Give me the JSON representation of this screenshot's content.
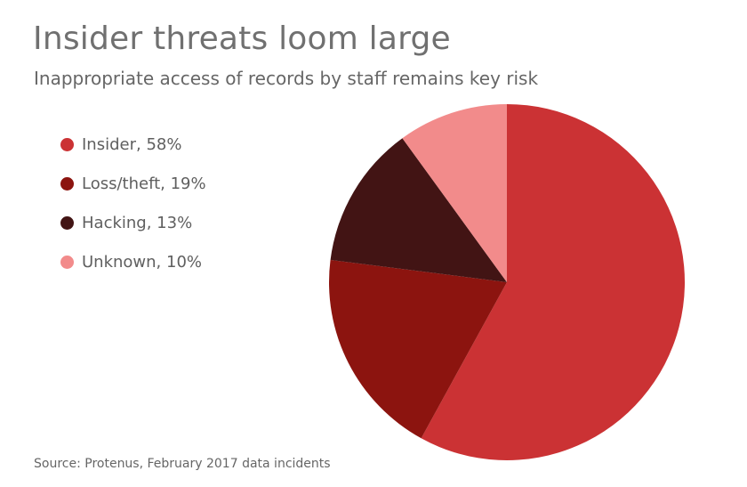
{
  "header": {
    "title": "Insider threats loom large",
    "subtitle": "Inappropriate access of records by staff remains key risk"
  },
  "legend": {
    "items": [
      {
        "label": "Insider, 58%"
      },
      {
        "label": "Loss/theft, 19%"
      },
      {
        "label": "Hacking, 13%"
      },
      {
        "label": "Unknown, 10%"
      }
    ]
  },
  "footer": {
    "source": "Source: Protenus, February 2017 data incidents"
  },
  "chart_data": {
    "type": "pie",
    "title": "Insider threats loom large",
    "subtitle": "Inappropriate access of records by staff remains key risk",
    "categories": [
      "Insider",
      "Loss/theft",
      "Hacking",
      "Unknown"
    ],
    "values": [
      58,
      19,
      13,
      10
    ],
    "colors": [
      "#cb3234",
      "#8c140f",
      "#421414",
      "#f28b8b"
    ],
    "legend_position": "left"
  }
}
